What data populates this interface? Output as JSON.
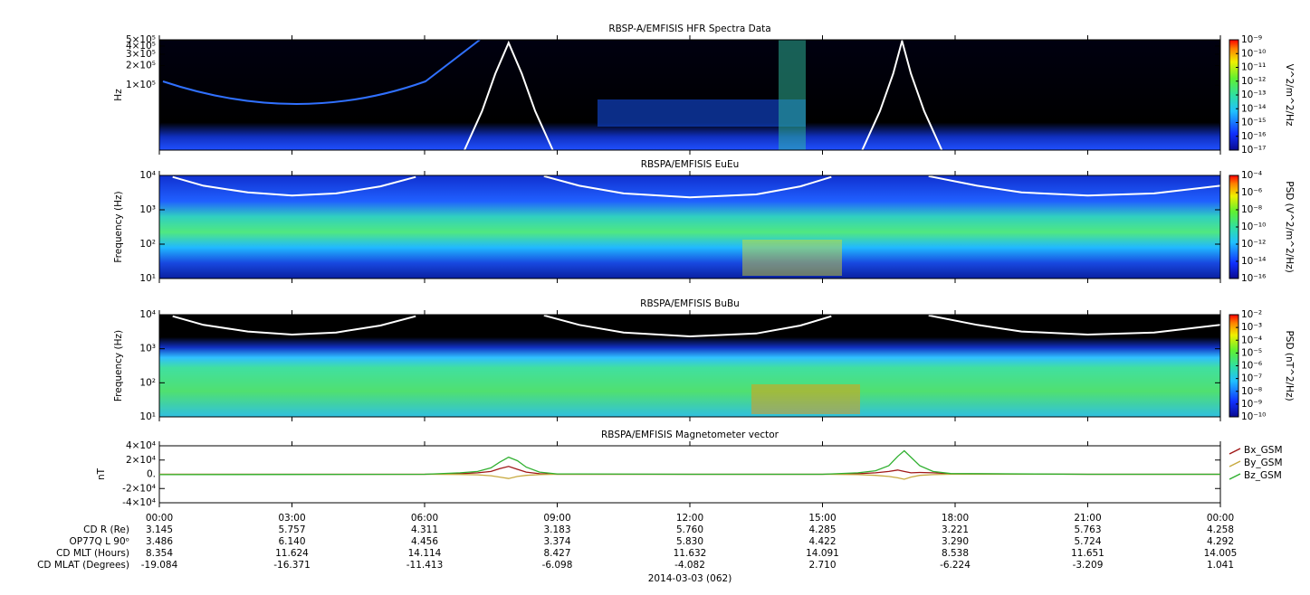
{
  "chart_data": [
    {
      "type": "spectrogram",
      "title": "RBSP-A/EMFISIS  HFR Spectra Data",
      "y_label": "Hz",
      "yscale": "log",
      "xlim": [
        0,
        24
      ],
      "ylim": [
        10000,
        500000
      ],
      "yticks": [
        {
          "value": 100000,
          "label": "1×10⁵"
        },
        {
          "value": 200000,
          "label": "2×10⁵"
        },
        {
          "value": 300000,
          "label": "3×10⁵"
        },
        {
          "value": 400000,
          "label": "4×10⁵"
        },
        {
          "value": 500000,
          "label": "5×10⁵"
        }
      ],
      "z_label": "V^2/m^2/Hz",
      "zscale": "log",
      "zlim": [
        1e-17,
        1e-09
      ],
      "zticks": [
        {
          "value": 1e-17,
          "label": "10⁻¹⁷"
        },
        {
          "value": 1e-16,
          "label": "10⁻¹⁶"
        },
        {
          "value": 1e-15,
          "label": "10⁻¹⁵"
        },
        {
          "value": 1e-14,
          "label": "10⁻¹⁴"
        },
        {
          "value": 1e-13,
          "label": "10⁻¹³"
        },
        {
          "value": 1e-12,
          "label": "10⁻¹²"
        },
        {
          "value": 1e-11,
          "label": "10⁻¹¹"
        },
        {
          "value": 1e-10,
          "label": "10⁻¹⁰"
        },
        {
          "value": 1e-09,
          "label": "10⁻⁹"
        }
      ],
      "curve": {
        "color": "#ffffff",
        "x": [
          6.9,
          7.3,
          7.6,
          7.9,
          8.2,
          8.5,
          8.9,
          null,
          15.9,
          16.3,
          16.6,
          16.8,
          17.0,
          17.3,
          17.7
        ],
        "values": [
          10000,
          40000,
          150000,
          450000,
          150000,
          40000,
          10000,
          null,
          10000,
          40000,
          150000,
          480000,
          150000,
          40000,
          10000
        ]
      }
    },
    {
      "type": "spectrogram",
      "title": "RBSPA/EMFISIS  EuEu",
      "y_label": "Frequency (Hz)",
      "yscale": "log",
      "xlim": [
        0,
        24
      ],
      "ylim": [
        10,
        10000
      ],
      "yticks": [
        {
          "value": 10,
          "label": "10¹"
        },
        {
          "value": 100,
          "label": "10²"
        },
        {
          "value": 1000,
          "label": "10³"
        },
        {
          "value": 10000,
          "label": "10⁴"
        }
      ],
      "z_label": "PSD (V^2/m^2/Hz)",
      "zscale": "log",
      "zlim": [
        1e-16,
        0.0001
      ],
      "zticks": [
        {
          "value": 1e-16,
          "label": "10⁻¹⁶"
        },
        {
          "value": 1e-14,
          "label": "10⁻¹⁴"
        },
        {
          "value": 1e-12,
          "label": "10⁻¹²"
        },
        {
          "value": 1e-10,
          "label": "10⁻¹⁰"
        },
        {
          "value": 1e-08,
          "label": "10⁻⁸"
        },
        {
          "value": 1e-06,
          "label": "10⁻⁶"
        },
        {
          "value": 0.0001,
          "label": "10⁻⁴"
        }
      ],
      "curve": {
        "color": "#ffffff",
        "x": [
          0.3,
          1.0,
          2.0,
          3.0,
          4.0,
          5.0,
          5.8,
          null,
          8.7,
          9.5,
          10.5,
          12.0,
          13.5,
          14.5,
          15.2,
          null,
          17.4,
          18.5,
          19.5,
          21.0,
          22.5,
          24.0
        ],
        "values": [
          9000,
          5000,
          3200,
          2600,
          3000,
          4800,
          9000,
          null,
          9500,
          5000,
          3000,
          2300,
          2800,
          4800,
          9000,
          null,
          9500,
          5000,
          3200,
          2600,
          3000,
          5000
        ]
      }
    },
    {
      "type": "spectrogram",
      "title": "RBSPA/EMFISIS  BuBu",
      "y_label": "Frequency (Hz)",
      "yscale": "log",
      "xlim": [
        0,
        24
      ],
      "ylim": [
        10,
        10000
      ],
      "yticks": [
        {
          "value": 10,
          "label": "10¹"
        },
        {
          "value": 100,
          "label": "10²"
        },
        {
          "value": 1000,
          "label": "10³"
        },
        {
          "value": 10000,
          "label": "10⁴"
        }
      ],
      "z_label": "PSD (nT^2/Hz)",
      "zscale": "log",
      "zlim": [
        1e-10,
        0.01
      ],
      "zticks": [
        {
          "value": 1e-10,
          "label": "10⁻¹⁰"
        },
        {
          "value": 1e-09,
          "label": "10⁻⁹"
        },
        {
          "value": 1e-08,
          "label": "10⁻⁸"
        },
        {
          "value": 1e-07,
          "label": "10⁻⁷"
        },
        {
          "value": 1e-06,
          "label": "10⁻⁶"
        },
        {
          "value": 1e-05,
          "label": "10⁻⁵"
        },
        {
          "value": 0.0001,
          "label": "10⁻⁴"
        },
        {
          "value": 0.001,
          "label": "10⁻³"
        },
        {
          "value": 0.01,
          "label": "10⁻²"
        }
      ],
      "curve": {
        "color": "#ffffff",
        "x": [
          0.3,
          1.0,
          2.0,
          3.0,
          4.0,
          5.0,
          5.8,
          null,
          8.7,
          9.5,
          10.5,
          12.0,
          13.5,
          14.5,
          15.2,
          null,
          17.4,
          18.5,
          19.5,
          21.0,
          22.5,
          24.0
        ],
        "values": [
          9000,
          5000,
          3200,
          2600,
          3000,
          4800,
          9000,
          null,
          9500,
          5000,
          3000,
          2300,
          2800,
          4800,
          9000,
          null,
          9500,
          5000,
          3200,
          2600,
          3000,
          5000
        ]
      }
    },
    {
      "type": "line",
      "title": "RBSPA/EMFISIS  Magnetometer vector",
      "y_label": "nT",
      "legend": "right",
      "xlim": [
        0,
        24
      ],
      "xticks": [
        {
          "value": 0,
          "label": "00:00"
        },
        {
          "value": 3,
          "label": "03:00"
        },
        {
          "value": 6,
          "label": "06:00"
        },
        {
          "value": 9,
          "label": "09:00"
        },
        {
          "value": 12,
          "label": "12:00"
        },
        {
          "value": 15,
          "label": "15:00"
        },
        {
          "value": 18,
          "label": "18:00"
        },
        {
          "value": 21,
          "label": "21:00"
        },
        {
          "value": 24,
          "label": "00:00"
        }
      ],
      "ylim": [
        -40000,
        40000
      ],
      "yticks": [
        {
          "value": -40000,
          "label": "-4×10⁴"
        },
        {
          "value": -20000,
          "label": "-2×10⁴"
        },
        {
          "value": 0,
          "label": "0."
        },
        {
          "value": 20000,
          "label": "2×10⁴"
        },
        {
          "value": 40000,
          "label": "4×10⁴"
        }
      ],
      "x": [
        0,
        3,
        6,
        6.8,
        7.2,
        7.5,
        7.7,
        7.9,
        8.1,
        8.3,
        8.6,
        9,
        12,
        15,
        15.8,
        16.2,
        16.5,
        16.7,
        16.85,
        17.0,
        17.2,
        17.5,
        17.9,
        21,
        24
      ],
      "series": [
        {
          "name": "Bx_GSM",
          "color": "#a01818",
          "values": [
            0,
            0,
            0,
            800,
            2000,
            4000,
            8000,
            11000,
            7000,
            3000,
            800,
            0,
            0,
            0,
            800,
            2000,
            4000,
            6000,
            4000,
            2000,
            2500,
            2000,
            800,
            0,
            0
          ]
        },
        {
          "name": "By_GSM",
          "color": "#c8aa40",
          "values": [
            0,
            0,
            0,
            -300,
            -800,
            -2000,
            -4000,
            -6000,
            -3000,
            -1500,
            -500,
            0,
            0,
            0,
            -500,
            -1500,
            -3000,
            -5000,
            -7000,
            -4000,
            -1500,
            -500,
            0,
            0,
            0
          ]
        },
        {
          "name": "Bz_GSM",
          "color": "#30b030",
          "values": [
            -500,
            -300,
            0,
            2000,
            4000,
            9000,
            17000,
            24000,
            19000,
            10000,
            3000,
            500,
            0,
            0,
            2000,
            5000,
            12000,
            25000,
            33000,
            24000,
            12000,
            4000,
            1000,
            0,
            0
          ]
        }
      ]
    }
  ],
  "ephemeris": {
    "rows": [
      {
        "label": "CD R (Re)",
        "values": [
          "3.145",
          "5.757",
          "4.311",
          "3.183",
          "5.760",
          "4.285",
          "3.221",
          "5.763",
          "4.258"
        ]
      },
      {
        "label": "OP77Q L 90ᵒ",
        "values": [
          "3.486",
          "6.140",
          "4.456",
          "3.374",
          "5.830",
          "4.422",
          "3.290",
          "5.724",
          "4.292"
        ]
      },
      {
        "label": "CD MLT (Hours)",
        "values": [
          "8.354",
          "11.624",
          "14.114",
          "8.427",
          "11.632",
          "14.091",
          "8.538",
          "11.651",
          "14.005"
        ]
      },
      {
        "label": "CD MLAT (Degrees)",
        "values": [
          "-19.084",
          "-16.371",
          "-11.413",
          "-6.098",
          "-4.082",
          "2.710",
          "-6.224",
          "-3.209",
          "1.041"
        ]
      }
    ],
    "date": "2014-03-03 (062)"
  }
}
